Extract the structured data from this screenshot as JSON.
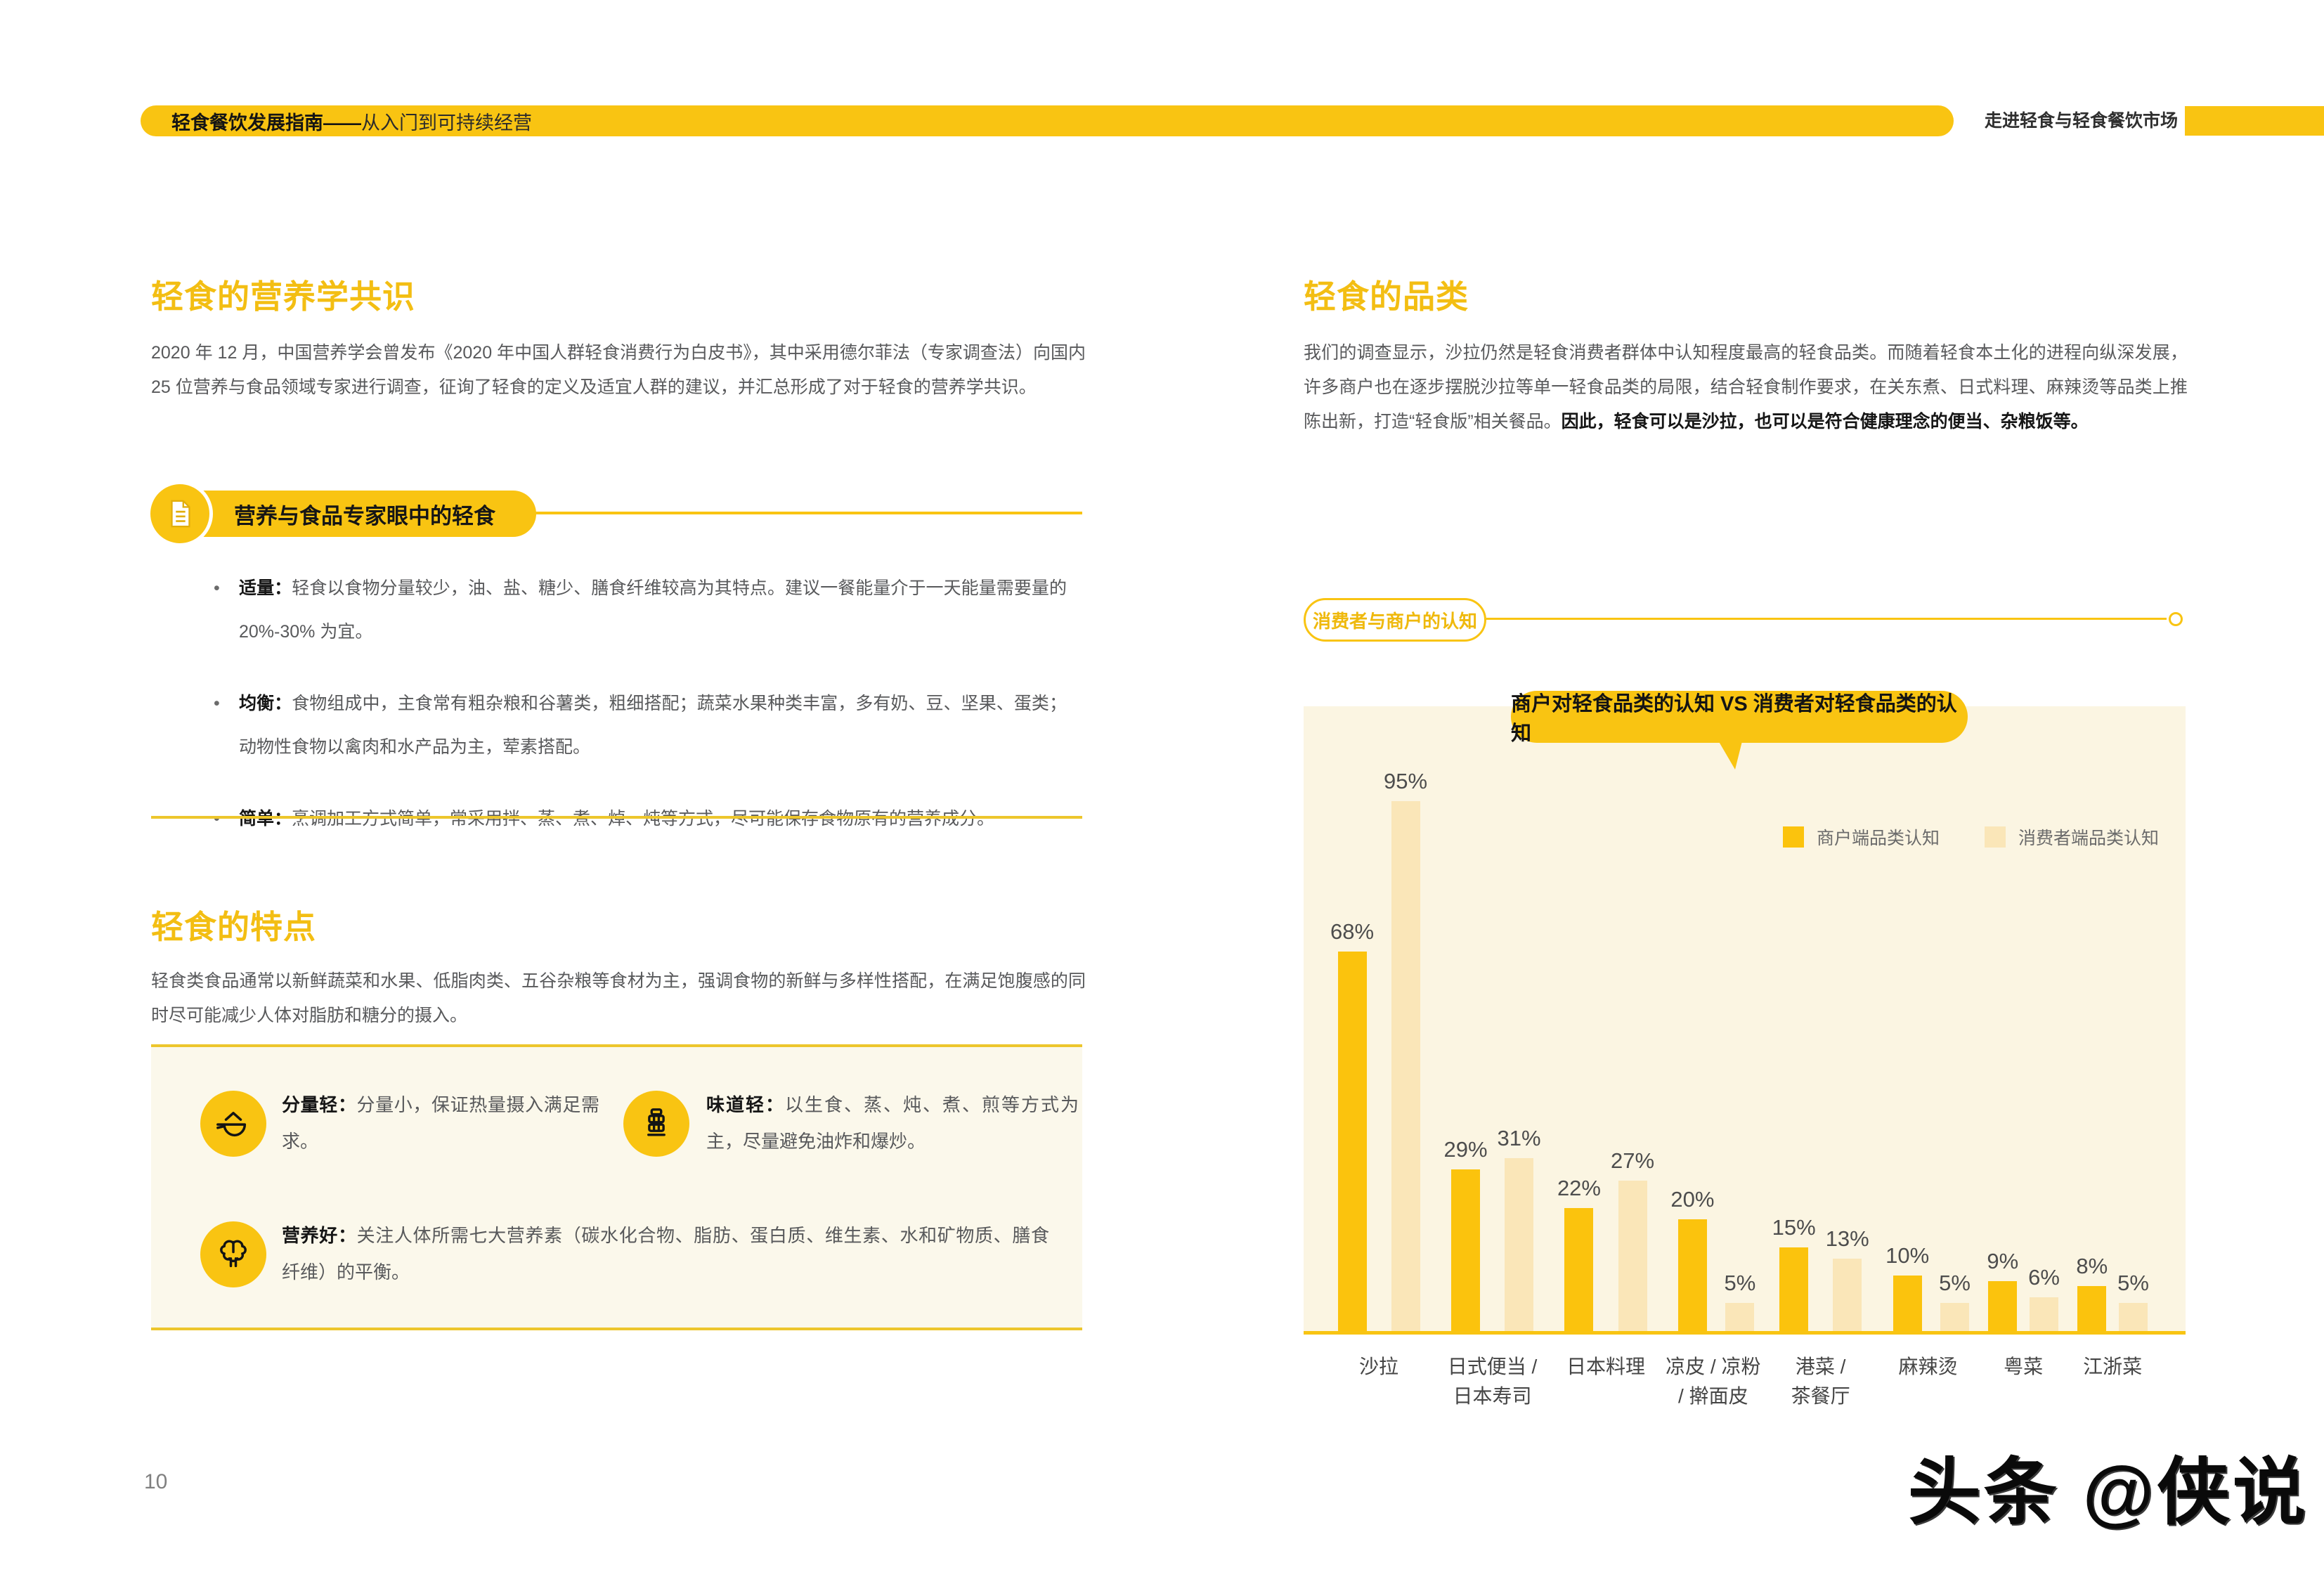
{
  "header": {
    "left_bold": "轻食餐饮发展指南——",
    "left_rest": "从入门到可持续经营",
    "right": "走进轻食与轻食餐饮市场"
  },
  "left": {
    "section1_title": "轻食的营养学共识",
    "section1_paragraph": "2020 年 12 月，中国营养学会曾发布《2020 年中国人群轻食消费行为白皮书》，其中采用德尔菲法（专家调查法）向国内 25 位营养与食品领域专家进行调查，征询了轻食的定义及适宜人群的建议，并汇总形成了对于轻食的营养学共识。",
    "expert_pill": "营养与食品专家眼中的轻食",
    "bullets": [
      {
        "lead": "适量：",
        "text": "轻食以食物分量较少，油、盐、糖少、膳食纤维较高为其特点。建议一餐能量介于一天能量需要量的 20%-30% 为宜。"
      },
      {
        "lead": "均衡：",
        "text": "食物组成中，主食常有粗杂粮和谷薯类，粗细搭配；蔬菜水果种类丰富，多有奶、豆、坚果、蛋类；动物性食物以禽肉和水产品为主，荤素搭配。"
      },
      {
        "lead": "简单：",
        "text": "烹调加工方式简单，常采用拌、蒸、煮、焯、炖等方式，尽可能保存食物原有的营养成分。"
      }
    ],
    "section2_title": "轻食的特点",
    "section2_paragraph": "轻食类食品通常以新鲜蔬菜和水果、低脂肉类、五谷杂粮等食材为主，强调食物的新鲜与多样性搭配，在满足饱腹感的同时尽可能减少人体对脂肪和糖分的摄入。",
    "features": [
      {
        "icon": "bowl-icon",
        "lead": "分量轻：",
        "text": "分量小，保证热量摄入满足需求。"
      },
      {
        "icon": "steamer-icon",
        "lead": "味道轻：",
        "text": "以生食、蒸、炖、煮、煎等方式为主，尽量避免油炸和爆炒。"
      },
      {
        "icon": "nutrition-icon",
        "lead": "营养好：",
        "text": "关注人体所需七大营养素（碳水化合物、脂肪、蛋白质、维生素、水和矿物质、膳食纤维）的平衡。"
      }
    ]
  },
  "right": {
    "title": "轻食的品类",
    "paragraph_normal": "我们的调查显示，沙拉仍然是轻食消费者群体中认知程度最高的轻食品类。而随着轻食本土化的进程向纵深发展，许多商户也在逐步摆脱沙拉等单一轻食品类的局限，结合轻食制作要求，在关东煮、日式料理、麻辣烫等品类上推陈出新，打造“轻食版”相关餐品。",
    "paragraph_bold": "因此，轻食可以是沙拉，也可以是符合健康理念的便当、杂粮饭等。",
    "cognition_pill": "消费者与商户的认知"
  },
  "chart_data": {
    "type": "bar",
    "title": "商户对轻食品类的认知 VS 消费者对轻食品类的认知",
    "categories": [
      "沙拉",
      "日式便当 /\n日本寿司",
      "日本料理",
      "凉皮 / 凉粉\n/ 擀面皮",
      "港菜 /\n茶餐厅",
      "麻辣烫",
      "粤菜",
      "江浙菜"
    ],
    "series": [
      {
        "name": "商户端品类认知",
        "values": [
          68,
          29,
          22,
          20,
          15,
          10,
          9,
          8
        ]
      },
      {
        "name": "消费者端品类认知",
        "values": [
          95,
          31,
          27,
          5,
          13,
          5,
          6,
          5
        ]
      }
    ],
    "unit": "%",
    "ylim": [
      0,
      100
    ],
    "grid": false,
    "legend_position": "top-right"
  },
  "footer": {
    "page_number": "10",
    "watermark": "头条 @侠说"
  },
  "colors": {
    "accent": "#F9C412",
    "bar_merchant": "#FBC30D",
    "bar_consumer": "#FAE6B8",
    "chart_bg": "#FBF5E2",
    "feature_bg": "#FBF8EB",
    "rule": "#EDC62C",
    "text_gray": "#58595B"
  }
}
